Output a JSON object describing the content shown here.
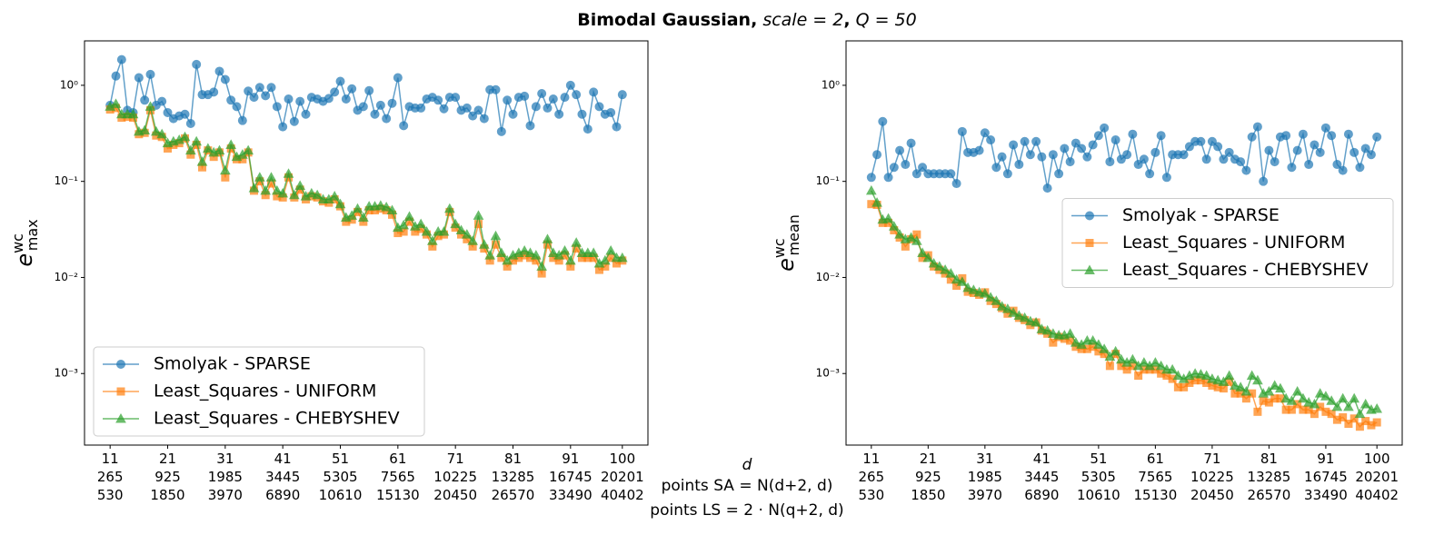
{
  "figure": {
    "title_parts": [
      "Bimodal Gaussian,",
      "scale = 2",
      ",",
      "Q = 50"
    ],
    "title_styles": [
      "bold",
      "italic",
      "bold",
      "italic"
    ],
    "xlabel_lines": [
      "d",
      "points SA = N(d+2, d)",
      "points LS = 2 · N(q+2, d)"
    ]
  },
  "chart_data": [
    {
      "type": "line",
      "log_y": true,
      "legend": "lower left",
      "ylabel": {
        "base": "e",
        "sup": "wc",
        "sub": "max"
      },
      "xlim": [
        6.55,
        104.45
      ],
      "ylim": [
        0.00018,
        2.9
      ],
      "xticks": [
        11,
        21,
        31,
        41,
        51,
        61,
        71,
        81,
        91,
        100
      ],
      "xtick_sa": [
        265,
        925,
        1985,
        3445,
        5305,
        7565,
        10225,
        13285,
        16745,
        20201
      ],
      "xtick_ls": [
        530,
        1850,
        3970,
        6890,
        10610,
        15130,
        20450,
        26570,
        33490,
        40402
      ],
      "yticks": [
        {
          "value": 0.001,
          "label": "10⁻³"
        },
        {
          "value": 0.01,
          "label": "10⁻²"
        },
        {
          "value": 0.1,
          "label": "10⁻¹"
        },
        {
          "value": 1,
          "label": "10⁰"
        }
      ],
      "x": [
        11,
        12,
        13,
        14,
        15,
        16,
        17,
        18,
        19,
        20,
        21,
        22,
        23,
        24,
        25,
        26,
        27,
        28,
        29,
        30,
        31,
        32,
        33,
        34,
        35,
        36,
        37,
        38,
        39,
        40,
        41,
        42,
        43,
        44,
        45,
        46,
        47,
        48,
        49,
        50,
        51,
        52,
        53,
        54,
        55,
        56,
        57,
        58,
        59,
        60,
        61,
        62,
        63,
        64,
        65,
        66,
        67,
        68,
        69,
        70,
        71,
        72,
        73,
        74,
        75,
        76,
        77,
        78,
        79,
        80,
        81,
        82,
        83,
        84,
        85,
        86,
        87,
        88,
        89,
        90,
        91,
        92,
        93,
        94,
        95,
        96,
        97,
        98,
        99,
        100
      ],
      "series": [
        {
          "name": "Smolyak - SPARSE",
          "color": "#1f77b4",
          "marker": "circle",
          "values": [
            0.62,
            1.25,
            1.85,
            0.55,
            0.52,
            1.2,
            0.7,
            1.3,
            0.62,
            0.68,
            0.52,
            0.45,
            0.48,
            0.5,
            0.4,
            1.65,
            0.8,
            0.8,
            0.85,
            1.4,
            1.15,
            0.7,
            0.6,
            0.43,
            0.87,
            0.75,
            0.95,
            0.78,
            0.95,
            0.6,
            0.37,
            0.72,
            0.42,
            0.68,
            0.5,
            0.75,
            0.72,
            0.68,
            0.73,
            0.85,
            1.1,
            0.72,
            0.92,
            0.55,
            0.6,
            0.88,
            0.5,
            0.62,
            0.45,
            0.65,
            1.2,
            0.38,
            0.6,
            0.58,
            0.58,
            0.72,
            0.75,
            0.7,
            0.57,
            0.75,
            0.75,
            0.55,
            0.58,
            0.48,
            0.55,
            0.45,
            0.9,
            0.9,
            0.33,
            0.7,
            0.5,
            0.75,
            0.77,
            0.38,
            0.6,
            0.82,
            0.58,
            0.72,
            0.5,
            0.75,
            1.0,
            0.8,
            0.5,
            0.35,
            0.85,
            0.6,
            0.5,
            0.52,
            0.37,
            0.8
          ]
        },
        {
          "name": "Least_Squares - UNIFORM",
          "color": "#ff7f0e",
          "marker": "square",
          "values": [
            0.56,
            0.58,
            0.46,
            0.47,
            0.46,
            0.31,
            0.32,
            0.55,
            0.3,
            0.29,
            0.22,
            0.24,
            0.25,
            0.28,
            0.19,
            0.24,
            0.14,
            0.21,
            0.18,
            0.2,
            0.11,
            0.22,
            0.17,
            0.17,
            0.2,
            0.08,
            0.1,
            0.072,
            0.095,
            0.07,
            0.068,
            0.11,
            0.068,
            0.082,
            0.065,
            0.07,
            0.068,
            0.062,
            0.06,
            0.065,
            0.055,
            0.038,
            0.04,
            0.048,
            0.038,
            0.05,
            0.05,
            0.052,
            0.05,
            0.045,
            0.029,
            0.03,
            0.038,
            0.03,
            0.032,
            0.028,
            0.021,
            0.027,
            0.028,
            0.048,
            0.033,
            0.028,
            0.025,
            0.021,
            0.036,
            0.02,
            0.015,
            0.022,
            0.016,
            0.013,
            0.015,
            0.016,
            0.017,
            0.016,
            0.015,
            0.011,
            0.022,
            0.016,
            0.015,
            0.017,
            0.013,
            0.02,
            0.016,
            0.016,
            0.016,
            0.012,
            0.013,
            0.016,
            0.014,
            0.015
          ]
        },
        {
          "name": "Least_Squares - CHEBYSHEV",
          "color": "#2ca02c",
          "marker": "triangle",
          "values": [
            0.6,
            0.64,
            0.5,
            0.5,
            0.5,
            0.33,
            0.34,
            0.6,
            0.33,
            0.31,
            0.25,
            0.26,
            0.27,
            0.29,
            0.21,
            0.26,
            0.16,
            0.22,
            0.2,
            0.21,
            0.13,
            0.24,
            0.18,
            0.19,
            0.21,
            0.085,
            0.11,
            0.08,
            0.11,
            0.08,
            0.075,
            0.12,
            0.072,
            0.09,
            0.07,
            0.075,
            0.072,
            0.065,
            0.065,
            0.07,
            0.058,
            0.042,
            0.044,
            0.052,
            0.042,
            0.055,
            0.055,
            0.056,
            0.054,
            0.05,
            0.033,
            0.035,
            0.043,
            0.034,
            0.036,
            0.03,
            0.024,
            0.03,
            0.03,
            0.052,
            0.036,
            0.031,
            0.028,
            0.024,
            0.044,
            0.022,
            0.017,
            0.027,
            0.018,
            0.015,
            0.017,
            0.018,
            0.019,
            0.018,
            0.017,
            0.013,
            0.025,
            0.018,
            0.017,
            0.019,
            0.015,
            0.023,
            0.018,
            0.018,
            0.018,
            0.014,
            0.015,
            0.019,
            0.016,
            0.016
          ]
        }
      ]
    },
    {
      "type": "line",
      "log_y": true,
      "legend": "center right",
      "ylabel": {
        "base": "e",
        "sup": "wc",
        "sub": "mean"
      },
      "xlim": [
        6.55,
        104.45
      ],
      "ylim": [
        0.00018,
        2.9
      ],
      "xticks": [
        11,
        21,
        31,
        41,
        51,
        61,
        71,
        81,
        91,
        100
      ],
      "xtick_sa": [
        265,
        925,
        1985,
        3445,
        5305,
        7565,
        10225,
        13285,
        16745,
        20201
      ],
      "xtick_ls": [
        530,
        1850,
        3970,
        6890,
        10610,
        15130,
        20450,
        26570,
        33490,
        40402
      ],
      "yticks": [
        {
          "value": 0.001,
          "label": "10⁻³"
        },
        {
          "value": 0.01,
          "label": "10⁻²"
        },
        {
          "value": 0.1,
          "label": "10⁻¹"
        },
        {
          "value": 1,
          "label": "10⁰"
        }
      ],
      "x": [
        11,
        12,
        13,
        14,
        15,
        16,
        17,
        18,
        19,
        20,
        21,
        22,
        23,
        24,
        25,
        26,
        27,
        28,
        29,
        30,
        31,
        32,
        33,
        34,
        35,
        36,
        37,
        38,
        39,
        40,
        41,
        42,
        43,
        44,
        45,
        46,
        47,
        48,
        49,
        50,
        51,
        52,
        53,
        54,
        55,
        56,
        57,
        58,
        59,
        60,
        61,
        62,
        63,
        64,
        65,
        66,
        67,
        68,
        69,
        70,
        71,
        72,
        73,
        74,
        75,
        76,
        77,
        78,
        79,
        80,
        81,
        82,
        83,
        84,
        85,
        86,
        87,
        88,
        89,
        90,
        91,
        92,
        93,
        94,
        95,
        96,
        97,
        98,
        99,
        100
      ],
      "series": [
        {
          "name": "Smolyak - SPARSE",
          "color": "#1f77b4",
          "marker": "circle",
          "values": [
            0.11,
            0.19,
            0.42,
            0.11,
            0.14,
            0.21,
            0.15,
            0.25,
            0.12,
            0.14,
            0.12,
            0.12,
            0.12,
            0.12,
            0.12,
            0.095,
            0.33,
            0.2,
            0.2,
            0.21,
            0.32,
            0.27,
            0.14,
            0.18,
            0.12,
            0.24,
            0.15,
            0.26,
            0.19,
            0.26,
            0.18,
            0.085,
            0.19,
            0.12,
            0.22,
            0.16,
            0.25,
            0.22,
            0.18,
            0.24,
            0.3,
            0.36,
            0.16,
            0.27,
            0.17,
            0.19,
            0.31,
            0.15,
            0.17,
            0.12,
            0.2,
            0.3,
            0.11,
            0.19,
            0.19,
            0.19,
            0.23,
            0.26,
            0.26,
            0.17,
            0.26,
            0.23,
            0.17,
            0.2,
            0.17,
            0.16,
            0.13,
            0.29,
            0.37,
            0.1,
            0.21,
            0.16,
            0.29,
            0.3,
            0.14,
            0.21,
            0.31,
            0.15,
            0.24,
            0.2,
            0.36,
            0.3,
            0.15,
            0.13,
            0.31,
            0.2,
            0.14,
            0.22,
            0.19,
            0.29
          ]
        },
        {
          "name": "Least_Squares - UNIFORM",
          "color": "#ff7f0e",
          "marker": "square",
          "values": [
            0.058,
            0.057,
            0.037,
            0.037,
            0.031,
            0.026,
            0.021,
            0.025,
            0.028,
            0.016,
            0.017,
            0.013,
            0.012,
            0.011,
            0.0095,
            0.0082,
            0.0098,
            0.0071,
            0.0069,
            0.0066,
            0.007,
            0.0057,
            0.0053,
            0.0048,
            0.0042,
            0.0045,
            0.0038,
            0.0036,
            0.0032,
            0.0034,
            0.0028,
            0.0026,
            0.0021,
            0.0024,
            0.0023,
            0.0022,
            0.0019,
            0.0018,
            0.0018,
            0.0019,
            0.0017,
            0.0016,
            0.0012,
            0.0016,
            0.0012,
            0.0011,
            0.0012,
            0.00095,
            0.0011,
            0.0011,
            0.0011,
            0.001,
            0.00095,
            0.00088,
            0.00072,
            0.00072,
            0.0008,
            0.00085,
            0.00085,
            0.0008,
            0.00075,
            0.00072,
            0.0007,
            0.00082,
            0.00062,
            0.00062,
            0.00055,
            0.00062,
            0.0004,
            0.00052,
            0.0005,
            0.00055,
            0.00055,
            0.00042,
            0.00042,
            0.00048,
            0.00042,
            0.00042,
            0.00038,
            0.00045,
            0.0004,
            0.00038,
            0.00033,
            0.00035,
            0.0003,
            0.00034,
            0.00028,
            0.00032,
            0.00029,
            0.00031
          ]
        },
        {
          "name": "Least_Squares - CHEBYSHEV",
          "color": "#2ca02c",
          "marker": "triangle",
          "values": [
            0.08,
            0.06,
            0.04,
            0.041,
            0.034,
            0.028,
            0.025,
            0.026,
            0.024,
            0.018,
            0.016,
            0.014,
            0.013,
            0.012,
            0.011,
            0.0095,
            0.009,
            0.0078,
            0.0074,
            0.007,
            0.0068,
            0.0062,
            0.0057,
            0.005,
            0.0047,
            0.0043,
            0.004,
            0.0038,
            0.0035,
            0.0034,
            0.0029,
            0.0028,
            0.0026,
            0.0025,
            0.0025,
            0.0026,
            0.0021,
            0.002,
            0.0022,
            0.0022,
            0.002,
            0.0018,
            0.0015,
            0.0017,
            0.0014,
            0.0013,
            0.0014,
            0.0012,
            0.0013,
            0.0012,
            0.0013,
            0.0012,
            0.0011,
            0.0011,
            0.00095,
            0.00088,
            0.00095,
            0.001,
            0.00098,
            0.00095,
            0.00088,
            0.00085,
            0.00082,
            0.00095,
            0.00075,
            0.00072,
            0.00065,
            0.00095,
            0.00085,
            0.00062,
            0.00065,
            0.00075,
            0.0007,
            0.00055,
            0.00052,
            0.00065,
            0.00055,
            0.0005,
            0.00048,
            0.00062,
            0.00058,
            0.00052,
            0.00045,
            0.00055,
            0.00045,
            0.00055,
            0.00038,
            0.00048,
            0.00042,
            0.00043
          ]
        }
      ]
    }
  ]
}
